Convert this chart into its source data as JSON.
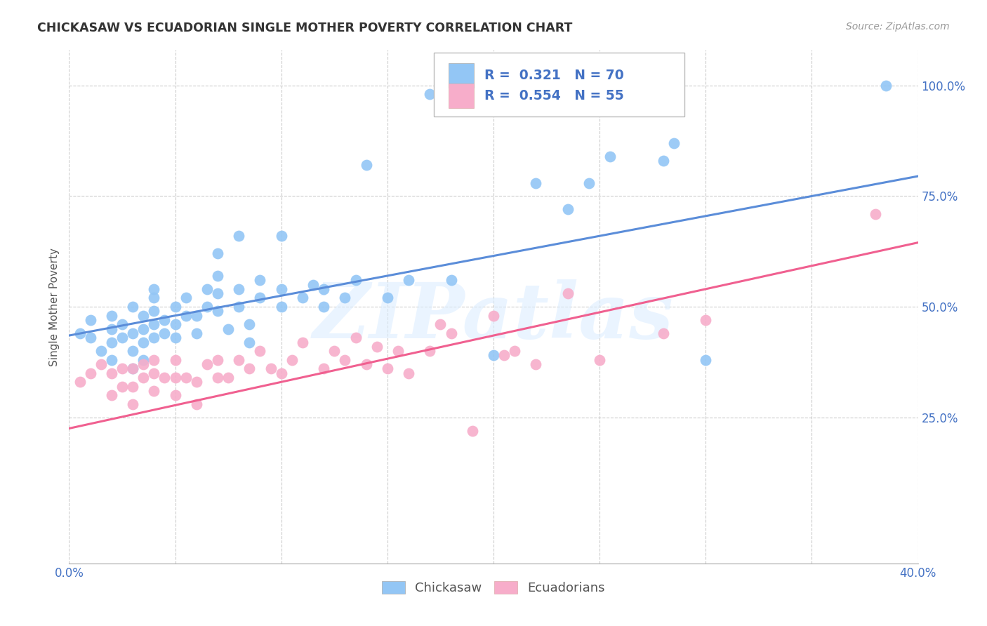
{
  "title": "CHICKASAW VS ECUADORIAN SINGLE MOTHER POVERTY CORRELATION CHART",
  "source": "Source: ZipAtlas.com",
  "ylabel": "Single Mother Poverty",
  "watermark": "ZIPatlas",
  "legend_blue_r": "0.321",
  "legend_blue_n": "70",
  "legend_pink_r": "0.554",
  "legend_pink_n": "55",
  "legend_label1": "Chickasaw",
  "legend_label2": "Ecuadorians",
  "xmin": 0.0,
  "xmax": 0.4,
  "ymin": -0.08,
  "ymax": 1.08,
  "x_ticks": [
    0.0,
    0.05,
    0.1,
    0.15,
    0.2,
    0.25,
    0.3,
    0.35,
    0.4
  ],
  "y_ticks_right": [
    0.25,
    0.5,
    0.75,
    1.0
  ],
  "y_tick_labels_right": [
    "25.0%",
    "50.0%",
    "75.0%",
    "100.0%"
  ],
  "blue_color": "#93C6F5",
  "pink_color": "#F7ADCA",
  "blue_line_color": "#5B8DD9",
  "pink_line_color": "#F06090",
  "title_color": "#333333",
  "source_color": "#999999",
  "legend_text_color": "#4472C4",
  "grid_color": "#CCCCCC",
  "background_color": "#FFFFFF",
  "blue_scatter_x": [
    0.005,
    0.01,
    0.01,
    0.015,
    0.02,
    0.02,
    0.02,
    0.02,
    0.025,
    0.025,
    0.03,
    0.03,
    0.03,
    0.03,
    0.035,
    0.035,
    0.035,
    0.035,
    0.04,
    0.04,
    0.04,
    0.04,
    0.04,
    0.045,
    0.045,
    0.05,
    0.05,
    0.05,
    0.055,
    0.055,
    0.06,
    0.06,
    0.065,
    0.065,
    0.07,
    0.07,
    0.07,
    0.07,
    0.075,
    0.08,
    0.08,
    0.08,
    0.085,
    0.085,
    0.09,
    0.09,
    0.1,
    0.1,
    0.1,
    0.11,
    0.115,
    0.12,
    0.12,
    0.13,
    0.135,
    0.14,
    0.15,
    0.16,
    0.17,
    0.18,
    0.2,
    0.21,
    0.22,
    0.235,
    0.245,
    0.255,
    0.28,
    0.285,
    0.3,
    0.385
  ],
  "blue_scatter_y": [
    0.44,
    0.43,
    0.47,
    0.4,
    0.38,
    0.42,
    0.45,
    0.48,
    0.43,
    0.46,
    0.36,
    0.4,
    0.44,
    0.5,
    0.38,
    0.42,
    0.45,
    0.48,
    0.43,
    0.46,
    0.49,
    0.52,
    0.54,
    0.44,
    0.47,
    0.43,
    0.46,
    0.5,
    0.48,
    0.52,
    0.44,
    0.48,
    0.5,
    0.54,
    0.49,
    0.53,
    0.57,
    0.62,
    0.45,
    0.5,
    0.54,
    0.66,
    0.42,
    0.46,
    0.52,
    0.56,
    0.5,
    0.54,
    0.66,
    0.52,
    0.55,
    0.5,
    0.54,
    0.52,
    0.56,
    0.82,
    0.52,
    0.56,
    0.98,
    0.56,
    0.39,
    0.98,
    0.78,
    0.72,
    0.78,
    0.84,
    0.83,
    0.87,
    0.38,
    1.0
  ],
  "pink_scatter_x": [
    0.005,
    0.01,
    0.015,
    0.02,
    0.02,
    0.025,
    0.025,
    0.03,
    0.03,
    0.03,
    0.035,
    0.035,
    0.04,
    0.04,
    0.04,
    0.045,
    0.05,
    0.05,
    0.05,
    0.055,
    0.06,
    0.06,
    0.065,
    0.07,
    0.07,
    0.075,
    0.08,
    0.085,
    0.09,
    0.095,
    0.1,
    0.105,
    0.11,
    0.12,
    0.125,
    0.13,
    0.135,
    0.14,
    0.145,
    0.15,
    0.155,
    0.16,
    0.17,
    0.175,
    0.18,
    0.19,
    0.2,
    0.205,
    0.21,
    0.22,
    0.235,
    0.25,
    0.28,
    0.3,
    0.38
  ],
  "pink_scatter_y": [
    0.33,
    0.35,
    0.37,
    0.3,
    0.35,
    0.32,
    0.36,
    0.28,
    0.32,
    0.36,
    0.34,
    0.37,
    0.31,
    0.35,
    0.38,
    0.34,
    0.3,
    0.34,
    0.38,
    0.34,
    0.28,
    0.33,
    0.37,
    0.34,
    0.38,
    0.34,
    0.38,
    0.36,
    0.4,
    0.36,
    0.35,
    0.38,
    0.42,
    0.36,
    0.4,
    0.38,
    0.43,
    0.37,
    0.41,
    0.36,
    0.4,
    0.35,
    0.4,
    0.46,
    0.44,
    0.22,
    0.48,
    0.39,
    0.4,
    0.37,
    0.53,
    0.38,
    0.44,
    0.47,
    0.71
  ],
  "blue_line_x": [
    0.0,
    0.4
  ],
  "blue_line_y": [
    0.435,
    0.795
  ],
  "pink_line_x": [
    0.0,
    0.4
  ],
  "pink_line_y": [
    0.225,
    0.645
  ]
}
